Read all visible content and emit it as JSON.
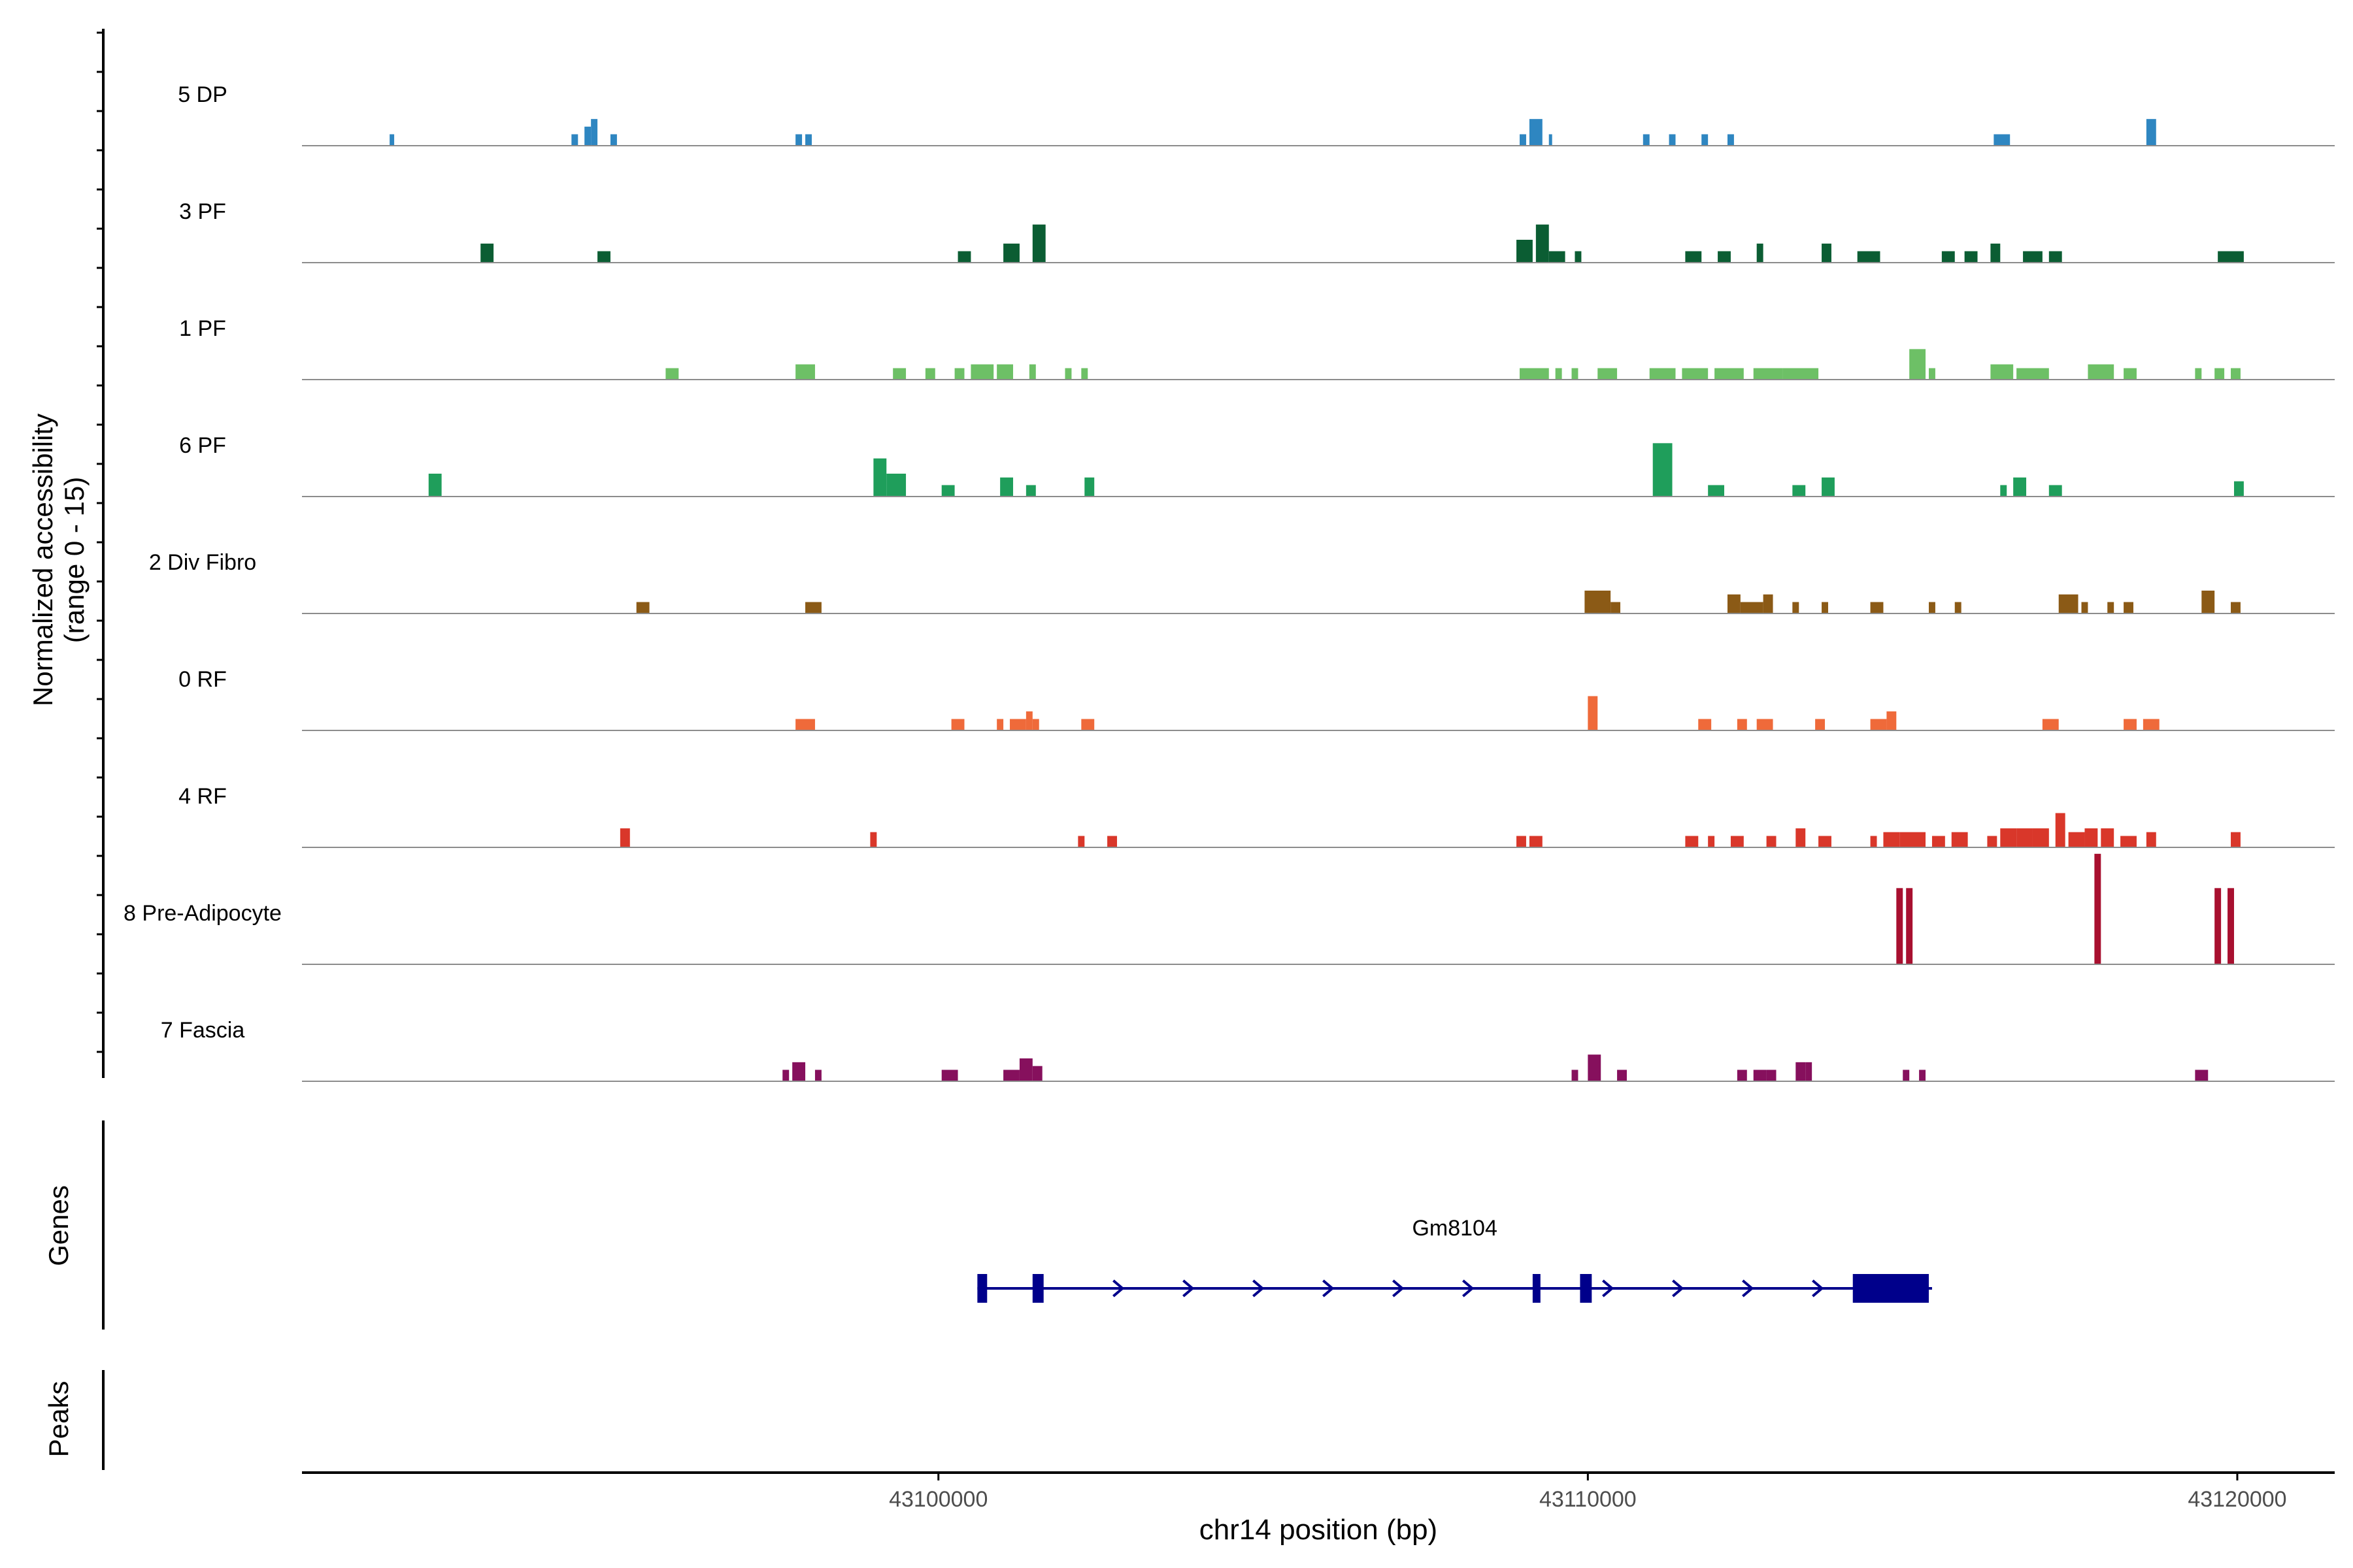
{
  "chart_data": {
    "type": "coverage",
    "title": "",
    "ylabel_line1": "Normalized accessibility",
    "ylabel_line2": "(range 0 - 15)",
    "ylim": [
      0,
      15
    ],
    "xlabel": "chr14 position (bp)",
    "xlim": [
      43090200,
      43121500
    ],
    "xticks": [
      43100000,
      43110000,
      43120000
    ],
    "xtick_labels": [
      "43100000",
      "43110000",
      "43120000"
    ],
    "genes_label": "Genes",
    "peaks_label": "Peaks",
    "gene": {
      "name": "Gm8104",
      "start": 43100600,
      "end": 43115300,
      "strand": "+",
      "color": "#00008B",
      "exons": [
        [
          43100600,
          43100750
        ],
        [
          43101450,
          43101620
        ],
        [
          43109150,
          43109270
        ],
        [
          43109880,
          43110060
        ],
        [
          43114080,
          43115250
        ]
      ]
    },
    "tracks": [
      {
        "name": "5 DP",
        "color": "#2E86C1",
        "peaks": [
          [
            43091550,
            43091620,
            1.5
          ],
          [
            43094350,
            43094450,
            1.5
          ],
          [
            43094550,
            43094650,
            2.5
          ],
          [
            43094650,
            43094750,
            3.5
          ],
          [
            43094950,
            43095050,
            1.5
          ],
          [
            43097800,
            43097900,
            1.5
          ],
          [
            43097950,
            43098050,
            1.5
          ],
          [
            43108950,
            43109050,
            1.5
          ],
          [
            43109100,
            43109300,
            3.5
          ],
          [
            43109400,
            43109450,
            1.5
          ],
          [
            43110850,
            43110950,
            1.5
          ],
          [
            43111250,
            43111350,
            1.5
          ],
          [
            43111750,
            43111850,
            1.5
          ],
          [
            43112150,
            43112250,
            1.5
          ],
          [
            43116250,
            43116500,
            1.5
          ],
          [
            43118600,
            43118750,
            3.5
          ]
        ]
      },
      {
        "name": "3 PF",
        "color": "#0B5D33",
        "peaks": [
          [
            43092950,
            43093150,
            2.5
          ],
          [
            43094750,
            43094950,
            1.5
          ],
          [
            43100300,
            43100500,
            1.5
          ],
          [
            43101000,
            43101250,
            2.5
          ],
          [
            43101450,
            43101650,
            5.0
          ],
          [
            43108900,
            43109150,
            3.0
          ],
          [
            43109200,
            43109400,
            5.0
          ],
          [
            43109400,
            43109650,
            1.5
          ],
          [
            43109800,
            43109900,
            1.5
          ],
          [
            43111500,
            43111750,
            1.5
          ],
          [
            43112000,
            43112200,
            1.5
          ],
          [
            43112600,
            43112700,
            2.5
          ],
          [
            43113600,
            43113750,
            2.5
          ],
          [
            43114150,
            43114500,
            1.5
          ],
          [
            43115450,
            43115650,
            1.5
          ],
          [
            43115800,
            43116000,
            1.5
          ],
          [
            43116200,
            43116350,
            2.5
          ],
          [
            43116700,
            43117000,
            1.5
          ],
          [
            43117100,
            43117300,
            1.5
          ],
          [
            43119700,
            43120100,
            1.5
          ]
        ]
      },
      {
        "name": "1 PF",
        "color": "#6DC066",
        "peaks": [
          [
            43095800,
            43096000,
            1.5
          ],
          [
            43097800,
            43098100,
            2.0
          ],
          [
            43099300,
            43099500,
            1.5
          ],
          [
            43099800,
            43099950,
            1.5
          ],
          [
            43100250,
            43100400,
            1.5
          ],
          [
            43100500,
            43100850,
            2.0
          ],
          [
            43100900,
            43101150,
            2.0
          ],
          [
            43101400,
            43101500,
            2.0
          ],
          [
            43101950,
            43102050,
            1.5
          ],
          [
            43102200,
            43102300,
            1.5
          ],
          [
            43108950,
            43109400,
            1.5
          ],
          [
            43109500,
            43109600,
            1.5
          ],
          [
            43109750,
            43109850,
            1.5
          ],
          [
            43110150,
            43110450,
            1.5
          ],
          [
            43110950,
            43111350,
            1.5
          ],
          [
            43111450,
            43111850,
            1.5
          ],
          [
            43111950,
            43112400,
            1.5
          ],
          [
            43112550,
            43113000,
            1.5
          ],
          [
            43113000,
            43113550,
            1.5
          ],
          [
            43114950,
            43115200,
            4.0
          ],
          [
            43115250,
            43115350,
            1.5
          ],
          [
            43116200,
            43116550,
            2.0
          ],
          [
            43116600,
            43117100,
            1.5
          ],
          [
            43117700,
            43118100,
            2.0
          ],
          [
            43118250,
            43118450,
            1.5
          ],
          [
            43119350,
            43119450,
            1.5
          ],
          [
            43119650,
            43119800,
            1.5
          ],
          [
            43119900,
            43120050,
            1.5
          ]
        ]
      },
      {
        "name": "6 PF",
        "color": "#1F9E5B",
        "peaks": [
          [
            43092150,
            43092350,
            3.0
          ],
          [
            43099000,
            43099200,
            5.0
          ],
          [
            43099200,
            43099500,
            3.0
          ],
          [
            43100050,
            43100250,
            1.5
          ],
          [
            43100950,
            43101150,
            2.5
          ],
          [
            43101350,
            43101500,
            1.5
          ],
          [
            43102250,
            43102400,
            2.5
          ],
          [
            43111000,
            43111300,
            7.0
          ],
          [
            43111850,
            43112100,
            1.5
          ],
          [
            43113150,
            43113350,
            1.5
          ],
          [
            43113600,
            43113800,
            2.5
          ],
          [
            43116350,
            43116450,
            1.5
          ],
          [
            43116550,
            43116750,
            2.5
          ],
          [
            43117100,
            43117300,
            1.5
          ],
          [
            43119950,
            43120100,
            2.0
          ]
        ]
      },
      {
        "name": "2 Div Fibro",
        "color": "#8B5A16",
        "peaks": [
          [
            43095350,
            43095550,
            1.5
          ],
          [
            43097950,
            43098200,
            1.5
          ],
          [
            43109950,
            43110350,
            3.0
          ],
          [
            43110350,
            43110500,
            1.5
          ],
          [
            43112150,
            43112350,
            2.5
          ],
          [
            43112350,
            43112700,
            1.5
          ],
          [
            43112700,
            43112850,
            2.5
          ],
          [
            43113150,
            43113250,
            1.5
          ],
          [
            43113600,
            43113700,
            1.5
          ],
          [
            43114350,
            43114550,
            1.5
          ],
          [
            43115250,
            43115350,
            1.5
          ],
          [
            43115650,
            43115750,
            1.5
          ],
          [
            43117250,
            43117550,
            2.5
          ],
          [
            43117600,
            43117700,
            1.5
          ],
          [
            43118000,
            43118100,
            1.5
          ],
          [
            43118250,
            43118400,
            1.5
          ],
          [
            43119450,
            43119650,
            3.0
          ],
          [
            43119900,
            43120050,
            1.5
          ]
        ]
      },
      {
        "name": "0 RF",
        "color": "#EF6A3A",
        "peaks": [
          [
            43097800,
            43098100,
            1.5
          ],
          [
            43100200,
            43100400,
            1.5
          ],
          [
            43100900,
            43101000,
            1.5
          ],
          [
            43101100,
            43101350,
            1.5
          ],
          [
            43101350,
            43101450,
            2.5
          ],
          [
            43101450,
            43101550,
            1.5
          ],
          [
            43102200,
            43102400,
            1.5
          ],
          [
            43110000,
            43110150,
            4.5
          ],
          [
            43111700,
            43111900,
            1.5
          ],
          [
            43112300,
            43112450,
            1.5
          ],
          [
            43112600,
            43112850,
            1.5
          ],
          [
            43113500,
            43113650,
            1.5
          ],
          [
            43114350,
            43114600,
            1.5
          ],
          [
            43114600,
            43114750,
            2.5
          ],
          [
            43117000,
            43117250,
            1.5
          ],
          [
            43118250,
            43118450,
            1.5
          ],
          [
            43118550,
            43118800,
            1.5
          ]
        ]
      },
      {
        "name": "4 RF",
        "color": "#D9372A",
        "peaks": [
          [
            43095100,
            43095250,
            2.5
          ],
          [
            43098950,
            43099050,
            2.0
          ],
          [
            43102150,
            43102250,
            1.5
          ],
          [
            43102600,
            43102750,
            1.5
          ],
          [
            43108900,
            43109050,
            1.5
          ],
          [
            43109100,
            43109300,
            1.5
          ],
          [
            43111500,
            43111700,
            1.5
          ],
          [
            43111850,
            43111950,
            1.5
          ],
          [
            43112200,
            43112400,
            1.5
          ],
          [
            43112750,
            43112900,
            1.5
          ],
          [
            43113200,
            43113350,
            2.5
          ],
          [
            43113550,
            43113750,
            1.5
          ],
          [
            43114350,
            43114450,
            1.5
          ],
          [
            43114550,
            43114800,
            2.0
          ],
          [
            43114800,
            43115200,
            2.0
          ],
          [
            43115300,
            43115500,
            1.5
          ],
          [
            43115600,
            43115850,
            2.0
          ],
          [
            43116150,
            43116300,
            1.5
          ],
          [
            43116350,
            43116600,
            2.5
          ],
          [
            43116600,
            43116850,
            2.5
          ],
          [
            43116850,
            43117100,
            2.5
          ],
          [
            43117200,
            43117350,
            4.5
          ],
          [
            43117400,
            43117650,
            2.0
          ],
          [
            43117650,
            43117850,
            2.5
          ],
          [
            43117900,
            43118100,
            2.5
          ],
          [
            43118200,
            43118450,
            1.5
          ],
          [
            43118600,
            43118750,
            2.0
          ],
          [
            43119900,
            43120050,
            2.0
          ]
        ]
      },
      {
        "name": "8 Pre-Adipocyte",
        "color": "#A8102F",
        "peaks": [
          [
            43114750,
            43114850,
            10.0
          ],
          [
            43114900,
            43115000,
            10.0
          ],
          [
            43117800,
            43117900,
            14.5
          ],
          [
            43119650,
            43119750,
            10.0
          ],
          [
            43119850,
            43119950,
            10.0
          ]
        ]
      },
      {
        "name": "7 Fascia",
        "color": "#86105D",
        "peaks": [
          [
            43097600,
            43097700,
            1.5
          ],
          [
            43097750,
            43097950,
            2.5
          ],
          [
            43098100,
            43098200,
            1.5
          ],
          [
            43100050,
            43100300,
            1.5
          ],
          [
            43101000,
            43101250,
            1.5
          ],
          [
            43101250,
            43101450,
            3.0
          ],
          [
            43101450,
            43101600,
            2.0
          ],
          [
            43109750,
            43109850,
            1.5
          ],
          [
            43110000,
            43110200,
            3.5
          ],
          [
            43110450,
            43110600,
            1.5
          ],
          [
            43112300,
            43112450,
            1.5
          ],
          [
            43112550,
            43112750,
            1.5
          ],
          [
            43112750,
            43112900,
            1.5
          ],
          [
            43113200,
            43113350,
            2.5
          ],
          [
            43113350,
            43113450,
            2.5
          ],
          [
            43114850,
            43114950,
            1.5
          ],
          [
            43115100,
            43115200,
            1.5
          ],
          [
            43119350,
            43119550,
            1.5
          ]
        ]
      }
    ]
  }
}
